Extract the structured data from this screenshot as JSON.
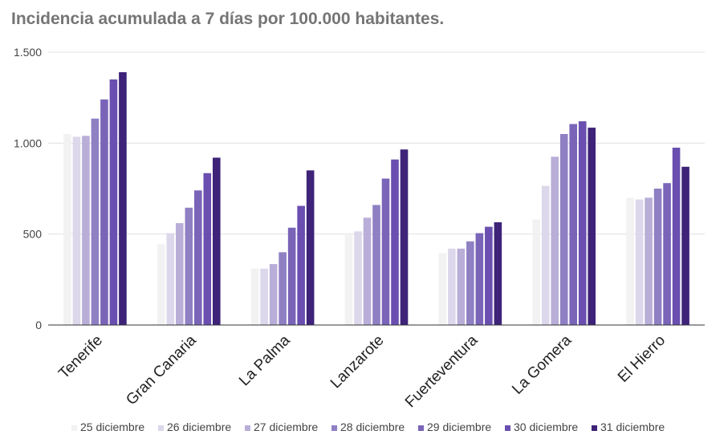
{
  "chart_data": {
    "type": "bar",
    "title": "Incidencia acumulada a 7 días por 100.000 habitantes.",
    "xlabel": "",
    "ylabel": "",
    "ylim": [
      0,
      1500
    ],
    "yticks": [
      0,
      500,
      1000,
      1500
    ],
    "ytick_labels": [
      "0",
      "500",
      "1.000",
      "1.500"
    ],
    "grid": true,
    "legend_position": "bottom",
    "categories": [
      "Tenerife",
      "Gran Canaria",
      "La Palma",
      "Lanzarote",
      "Fuerteventura",
      "La Gomera",
      "El Hierro"
    ],
    "series": [
      {
        "name": "25 diciembre",
        "color": "#f2f2f2",
        "values": [
          1050,
          445,
          310,
          495,
          395,
          580,
          700
        ]
      },
      {
        "name": "26 diciembre",
        "color": "#dcd7ea",
        "values": [
          1035,
          505,
          310,
          515,
          420,
          765,
          690
        ]
      },
      {
        "name": "27 diciembre",
        "color": "#b8aed8",
        "values": [
          1040,
          560,
          335,
          590,
          420,
          925,
          700
        ]
      },
      {
        "name": "28 diciembre",
        "color": "#8f80c4",
        "values": [
          1135,
          645,
          400,
          660,
          460,
          1050,
          750
        ]
      },
      {
        "name": "29 diciembre",
        "color": "#7a64b8",
        "values": [
          1240,
          740,
          535,
          805,
          505,
          1105,
          780
        ]
      },
      {
        "name": "30 diciembre",
        "color": "#6a4fb0",
        "values": [
          1350,
          835,
          655,
          910,
          540,
          1120,
          975
        ]
      },
      {
        "name": "31 diciembre",
        "color": "#3e2379",
        "values": [
          1390,
          920,
          850,
          965,
          565,
          1085,
          870
        ]
      }
    ]
  }
}
